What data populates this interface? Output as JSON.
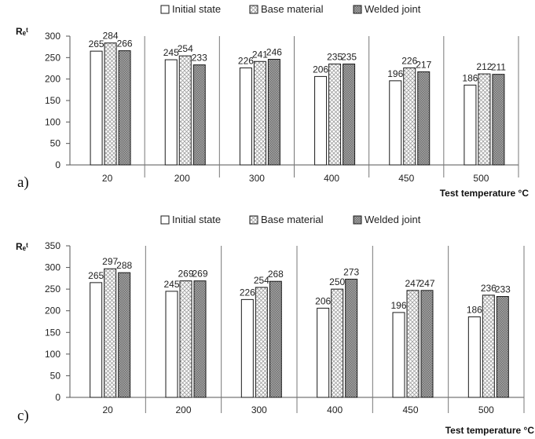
{
  "colors": {
    "initial": "#ffffff",
    "base_pattern": "#bdbdbd",
    "welded_pattern": "#8a8a8a",
    "stroke": "#1a1a1a"
  },
  "chart_data": [
    {
      "type": "bar",
      "panel_label": "a)",
      "ylabel": "Rₑᵗ",
      "xlabel": "Test temperature °C",
      "categories": [
        "20",
        "200",
        "300",
        "400",
        "450",
        "500"
      ],
      "series": [
        {
          "name": "Initial state",
          "values": [
            265,
            245,
            226,
            206,
            196,
            186
          ]
        },
        {
          "name": "Base material",
          "values": [
            284,
            254,
            241,
            235,
            226,
            212
          ]
        },
        {
          "name": "Welded joint",
          "values": [
            266,
            233,
            246,
            235,
            217,
            211
          ]
        }
      ],
      "ylim": [
        0,
        300
      ],
      "yticks": [
        0,
        50,
        100,
        150,
        200,
        250,
        300
      ],
      "legend_position": "top",
      "grid": false
    },
    {
      "type": "bar",
      "panel_label": "c)",
      "ylabel": "Rₑᵗ",
      "xlabel": "Test temperature °C",
      "categories": [
        "20",
        "200",
        "300",
        "400",
        "450",
        "500"
      ],
      "series": [
        {
          "name": "Initial state",
          "values": [
            265,
            245,
            226,
            206,
            196,
            186
          ]
        },
        {
          "name": "Base material",
          "values": [
            297,
            269,
            254,
            250,
            247,
            236
          ]
        },
        {
          "name": "Welded joint",
          "values": [
            288,
            269,
            268,
            273,
            247,
            233
          ]
        }
      ],
      "ylim": [
        0,
        350
      ],
      "yticks": [
        0,
        50,
        100,
        150,
        200,
        250,
        300,
        350
      ],
      "legend_position": "top",
      "grid": false
    }
  ]
}
